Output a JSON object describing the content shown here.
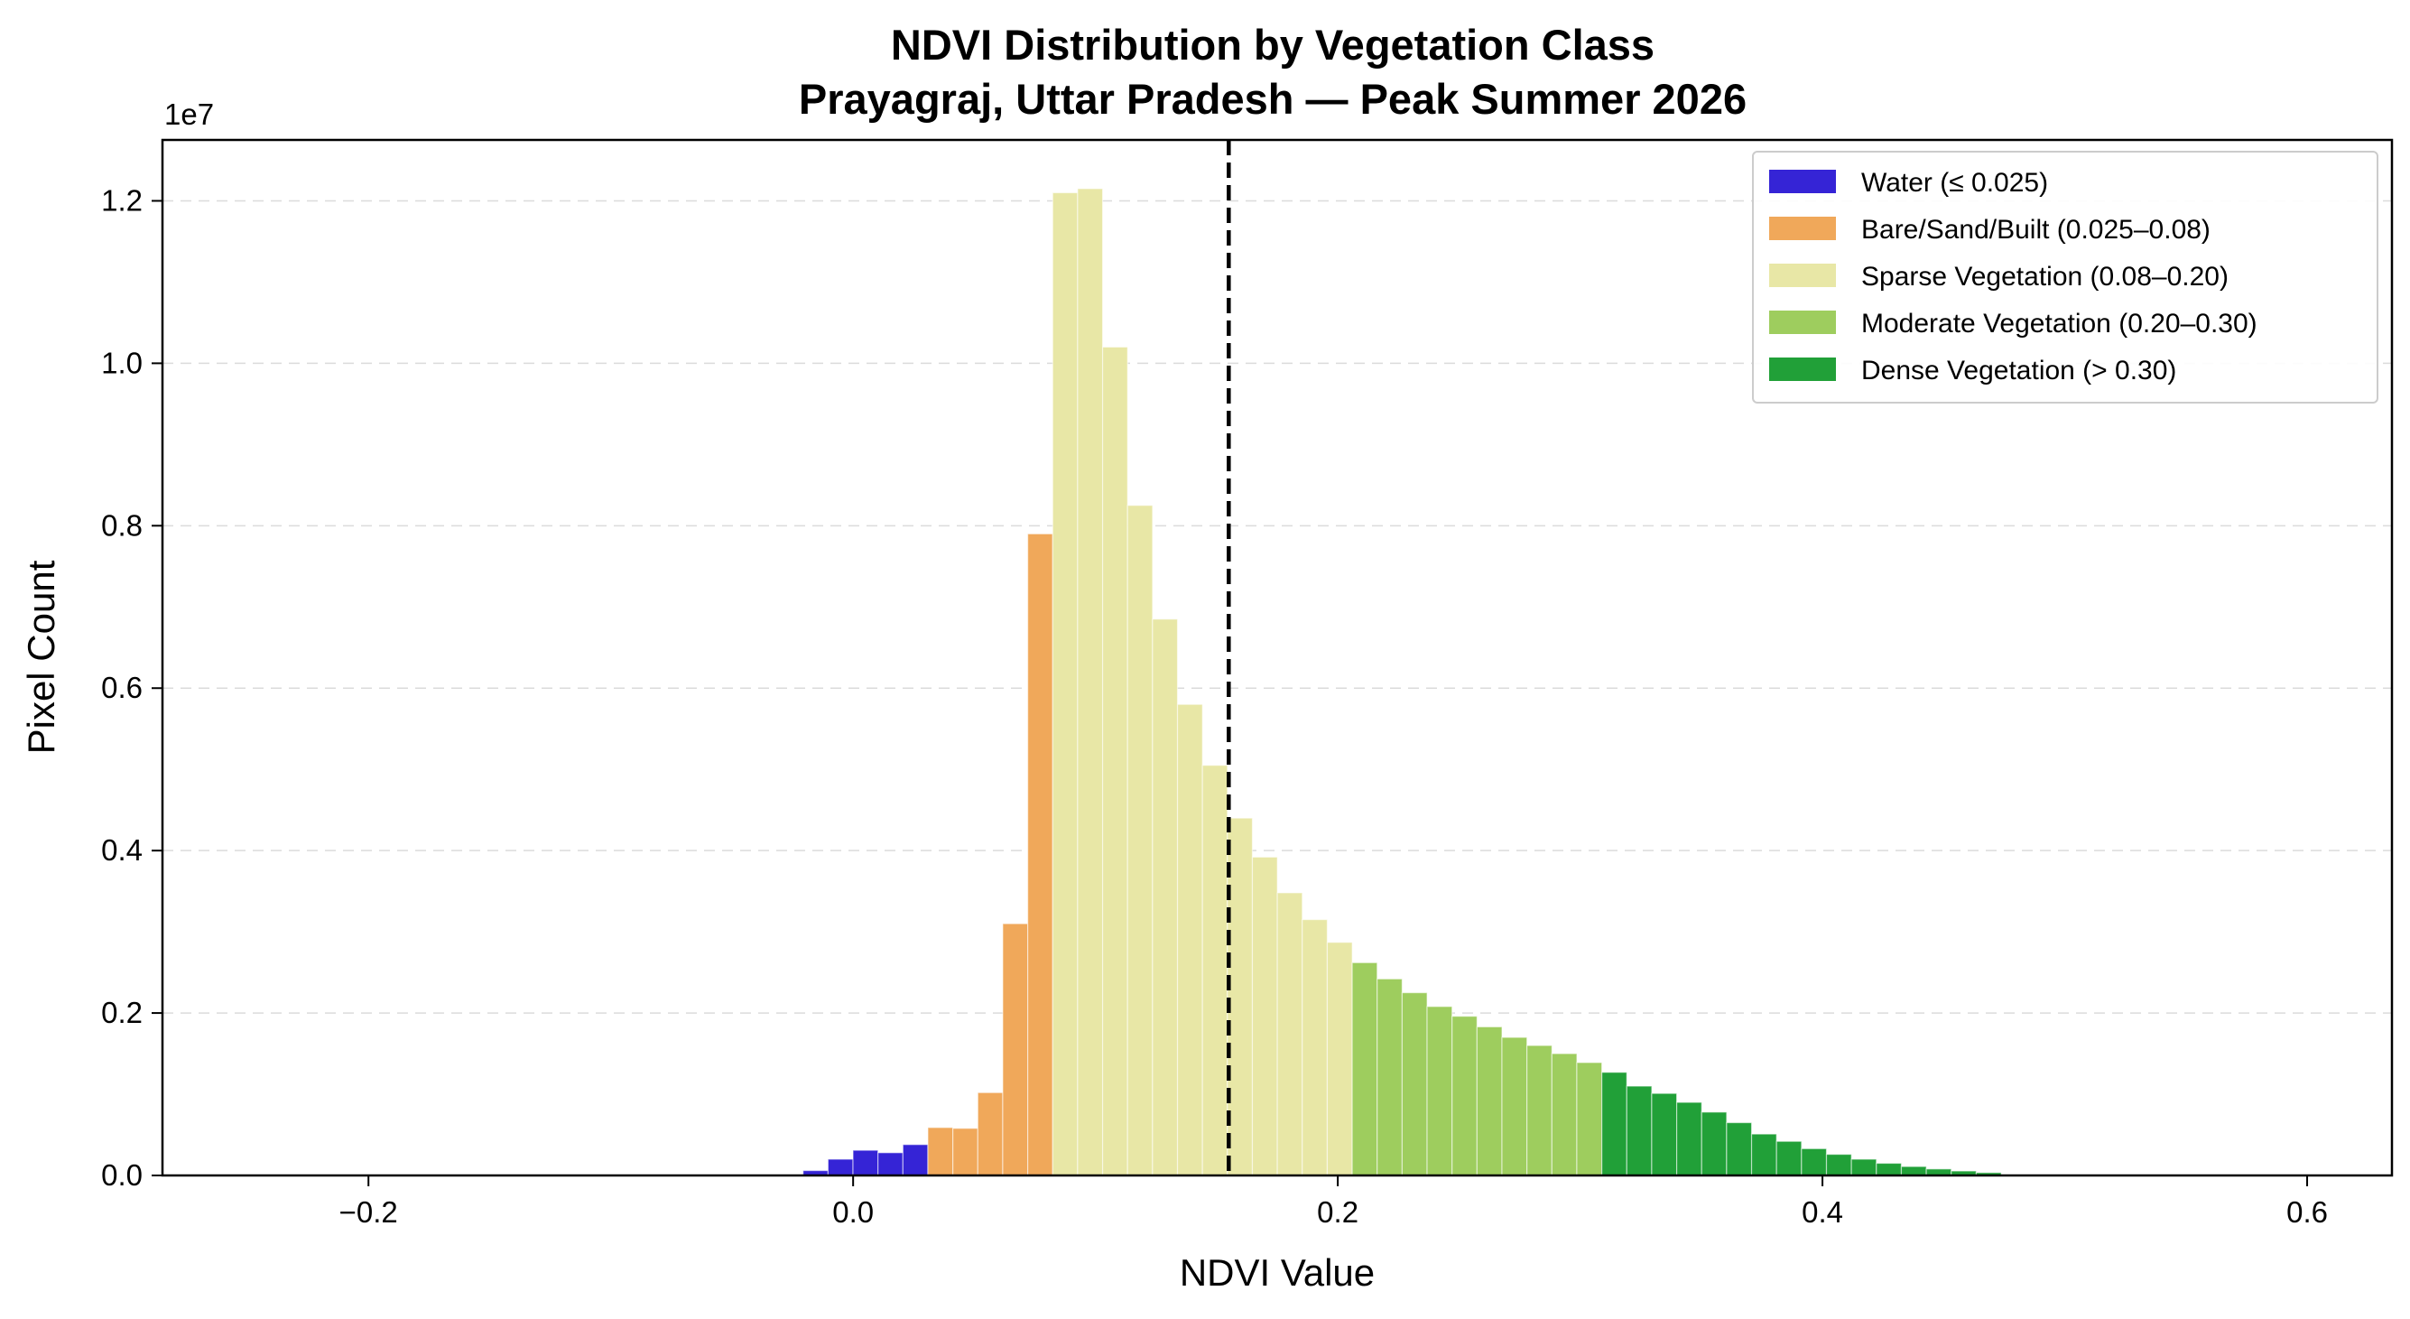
{
  "chart_data": {
    "type": "bar",
    "title": "NDVI Distribution by Vegetation Class",
    "subtitle": "Prayagraj, Uttar Pradesh — Peak Summer 2026",
    "xlabel": "NDVI Value",
    "ylabel": "Pixel Count",
    "y_offset_label": "1e7",
    "y_scale": 10000000,
    "xlim": [
      -0.285,
      0.635
    ],
    "ylim": [
      0,
      12750000
    ],
    "x_ticks": [
      -0.2,
      0.0,
      0.2,
      0.4,
      0.6
    ],
    "x_tick_labels": [
      "−0.2",
      "0.0",
      "0.2",
      "0.4",
      "0.6"
    ],
    "y_ticks": [
      0,
      2000000,
      4000000,
      6000000,
      8000000,
      10000000,
      12000000
    ],
    "y_tick_labels": [
      "0.0",
      "0.2",
      "0.4",
      "0.6",
      "0.8",
      "1.0",
      "1.2"
    ],
    "grid": "horizontal dashed",
    "legend_position": "upper right",
    "bin_width": 0.0103,
    "reference_line": {
      "x": 0.155,
      "style": "dashed",
      "color": "#000000"
    },
    "series": [
      {
        "name": "Water (≤ 0.025)",
        "color": "#3524d6",
        "bins": [
          {
            "x": -0.0155,
            "y": 60000
          },
          {
            "x": -0.0052,
            "y": 200000
          },
          {
            "x": 0.0051,
            "y": 310000
          },
          {
            "x": 0.0154,
            "y": 280000
          },
          {
            "x": 0.0257,
            "y": 380000
          }
        ]
      },
      {
        "name": "Bare/Sand/Built (0.025–0.08)",
        "color": "#f0a85a",
        "bins": [
          {
            "x": 0.036,
            "y": 590000
          },
          {
            "x": 0.0463,
            "y": 580000
          },
          {
            "x": 0.0566,
            "y": 1020000
          },
          {
            "x": 0.0669,
            "y": 3100000
          },
          {
            "x": 0.0772,
            "y": 7900000
          }
        ]
      },
      {
        "name": "Sparse Vegetation (0.08–0.20)",
        "color": "#e8e7a6",
        "bins": [
          {
            "x": 0.0875,
            "y": 12100000
          },
          {
            "x": 0.0978,
            "y": 12150000
          },
          {
            "x": 0.1081,
            "y": 10200000
          },
          {
            "x": 0.1184,
            "y": 8250000
          },
          {
            "x": 0.1287,
            "y": 6850000
          },
          {
            "x": 0.139,
            "y": 5800000
          },
          {
            "x": 0.1493,
            "y": 5050000
          },
          {
            "x": 0.1596,
            "y": 4400000
          },
          {
            "x": 0.1699,
            "y": 3920000
          },
          {
            "x": 0.1802,
            "y": 3480000
          },
          {
            "x": 0.1905,
            "y": 3150000
          },
          {
            "x": 0.2008,
            "y": 2870000
          }
        ]
      },
      {
        "name": "Moderate Vegetation (0.20–0.30)",
        "color": "#9ecd5e",
        "bins": [
          {
            "x": 0.2111,
            "y": 2620000
          },
          {
            "x": 0.2214,
            "y": 2420000
          },
          {
            "x": 0.2317,
            "y": 2250000
          },
          {
            "x": 0.242,
            "y": 2080000
          },
          {
            "x": 0.2523,
            "y": 1960000
          },
          {
            "x": 0.2626,
            "y": 1830000
          },
          {
            "x": 0.2729,
            "y": 1700000
          },
          {
            "x": 0.2832,
            "y": 1600000
          },
          {
            "x": 0.2935,
            "y": 1500000
          },
          {
            "x": 0.3038,
            "y": 1390000
          }
        ]
      },
      {
        "name": "Dense Vegetation (> 0.30)",
        "color": "#21a038",
        "bins": [
          {
            "x": 0.3141,
            "y": 1270000
          },
          {
            "x": 0.3244,
            "y": 1100000
          },
          {
            "x": 0.3347,
            "y": 1010000
          },
          {
            "x": 0.345,
            "y": 900000
          },
          {
            "x": 0.3553,
            "y": 780000
          },
          {
            "x": 0.3656,
            "y": 650000
          },
          {
            "x": 0.3759,
            "y": 510000
          },
          {
            "x": 0.3862,
            "y": 420000
          },
          {
            "x": 0.3965,
            "y": 330000
          },
          {
            "x": 0.4068,
            "y": 260000
          },
          {
            "x": 0.4171,
            "y": 200000
          },
          {
            "x": 0.4274,
            "y": 150000
          },
          {
            "x": 0.4377,
            "y": 110000
          },
          {
            "x": 0.448,
            "y": 80000
          },
          {
            "x": 0.4583,
            "y": 55000
          },
          {
            "x": 0.4686,
            "y": 35000
          }
        ]
      }
    ]
  }
}
